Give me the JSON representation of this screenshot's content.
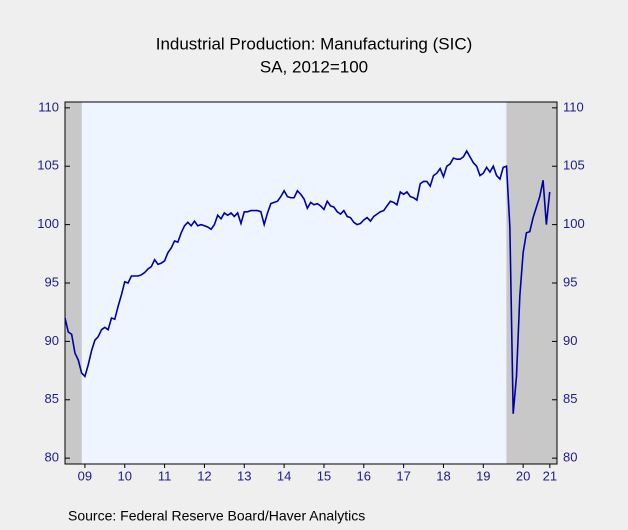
{
  "chart_data": {
    "type": "line",
    "title": "Industrial Production: Manufacturing (SIC)",
    "subtitle": "SA, 2012=100",
    "source": "Source:  Federal Reserve Board/Haver Analytics",
    "xlim": [
      2009,
      2021.35
    ],
    "xticks": [
      {
        "value": 2009.5,
        "label": "09"
      },
      {
        "value": 2010.5,
        "label": "10"
      },
      {
        "value": 2011.5,
        "label": "11"
      },
      {
        "value": 2012.5,
        "label": "12"
      },
      {
        "value": 2013.5,
        "label": "13"
      },
      {
        "value": 2014.5,
        "label": "14"
      },
      {
        "value": 2015.5,
        "label": "15"
      },
      {
        "value": 2016.5,
        "label": "16"
      },
      {
        "value": 2017.5,
        "label": "17"
      },
      {
        "value": 2018.5,
        "label": "18"
      },
      {
        "value": 2019.5,
        "label": "19"
      },
      {
        "value": 2020.5,
        "label": "20"
      },
      {
        "value": 2021.17,
        "label": "21"
      }
    ],
    "ylim": [
      79.5,
      110.5
    ],
    "yticks": [
      80,
      85,
      90,
      95,
      100,
      105,
      110
    ],
    "y2lim": [
      79.5,
      110.5
    ],
    "y2ticks": [
      80,
      85,
      90,
      95,
      100,
      105,
      110
    ],
    "shaded": [
      [
        2009.0,
        2009.42
      ],
      [
        2020.08,
        2021.35
      ]
    ],
    "shade_color": "#c8c8c8",
    "series": [
      {
        "color": "#0000a8",
        "x": [
          2009.0,
          2009.083,
          2009.167,
          2009.25,
          2009.333,
          2009.417,
          2009.5,
          2009.583,
          2009.667,
          2009.75,
          2009.833,
          2009.917,
          2010.0,
          2010.083,
          2010.167,
          2010.25,
          2010.333,
          2010.417,
          2010.5,
          2010.583,
          2010.667,
          2010.75,
          2010.833,
          2010.917,
          2011.0,
          2011.083,
          2011.167,
          2011.25,
          2011.333,
          2011.417,
          2011.5,
          2011.583,
          2011.667,
          2011.75,
          2011.833,
          2011.917,
          2012.0,
          2012.083,
          2012.167,
          2012.25,
          2012.333,
          2012.417,
          2012.5,
          2012.583,
          2012.667,
          2012.75,
          2012.833,
          2012.917,
          2013.0,
          2013.083,
          2013.167,
          2013.25,
          2013.333,
          2013.417,
          2013.5,
          2013.583,
          2013.667,
          2013.75,
          2013.833,
          2013.917,
          2014.0,
          2014.083,
          2014.167,
          2014.25,
          2014.333,
          2014.417,
          2014.5,
          2014.583,
          2014.667,
          2014.75,
          2014.833,
          2014.917,
          2015.0,
          2015.083,
          2015.167,
          2015.25,
          2015.333,
          2015.417,
          2015.5,
          2015.583,
          2015.667,
          2015.75,
          2015.833,
          2015.917,
          2016.0,
          2016.083,
          2016.167,
          2016.25,
          2016.333,
          2016.417,
          2016.5,
          2016.583,
          2016.667,
          2016.75,
          2016.833,
          2016.917,
          2017.0,
          2017.083,
          2017.167,
          2017.25,
          2017.333,
          2017.417,
          2017.5,
          2017.583,
          2017.667,
          2017.75,
          2017.833,
          2017.917,
          2018.0,
          2018.083,
          2018.167,
          2018.25,
          2018.333,
          2018.417,
          2018.5,
          2018.583,
          2018.667,
          2018.75,
          2018.833,
          2018.917,
          2019.0,
          2019.083,
          2019.167,
          2019.25,
          2019.333,
          2019.417,
          2019.5,
          2019.583,
          2019.667,
          2019.75,
          2019.833,
          2019.917,
          2020.0,
          2020.083,
          2020.167,
          2020.25,
          2020.333,
          2020.417,
          2020.5,
          2020.583,
          2020.667,
          2020.75,
          2020.833,
          2020.917,
          2021.0,
          2021.083,
          2021.167
        ],
        "values": [
          92.0,
          90.8,
          90.6,
          89.0,
          88.4,
          87.3,
          87.0,
          88.0,
          89.2,
          90.1,
          90.4,
          91.0,
          91.2,
          91.0,
          92.0,
          91.9,
          93.0,
          94.0,
          95.1,
          95.0,
          95.6,
          95.6,
          95.6,
          95.7,
          95.9,
          96.2,
          96.4,
          97.0,
          96.6,
          96.7,
          96.9,
          97.6,
          98.0,
          98.6,
          98.5,
          99.3,
          99.9,
          100.2,
          99.9,
          100.3,
          99.9,
          100.0,
          99.9,
          99.8,
          99.6,
          100.0,
          100.8,
          100.5,
          101.0,
          100.8,
          101.0,
          100.7,
          101.0,
          100.1,
          101.1,
          101.1,
          101.2,
          101.2,
          101.2,
          101.1,
          100.0,
          101.0,
          101.8,
          101.9,
          102.0,
          102.4,
          102.9,
          102.4,
          102.3,
          102.3,
          102.9,
          102.6,
          102.2,
          101.4,
          101.9,
          101.7,
          101.8,
          101.6,
          101.3,
          102.0,
          101.6,
          101.5,
          101.1,
          100.9,
          101.2,
          100.7,
          100.6,
          100.2,
          100.0,
          100.1,
          100.4,
          100.6,
          100.3,
          100.7,
          100.9,
          101.1,
          101.2,
          101.6,
          102.0,
          101.9,
          101.7,
          102.8,
          102.6,
          102.8,
          102.4,
          102.3,
          102.1,
          103.5,
          103.7,
          103.7,
          103.3,
          104.2,
          104.4,
          104.8,
          104.1,
          105.0,
          105.2,
          105.7,
          105.6,
          105.6,
          105.8,
          106.3,
          105.8,
          105.3,
          105.0,
          104.2,
          104.4,
          104.9,
          104.5,
          105.0,
          104.2,
          103.9,
          104.9,
          105.0,
          99.8,
          83.8,
          87.0,
          93.9,
          97.6,
          99.3,
          99.4,
          100.6,
          101.5,
          102.4,
          103.8,
          100.0,
          102.8
        ]
      }
    ]
  }
}
